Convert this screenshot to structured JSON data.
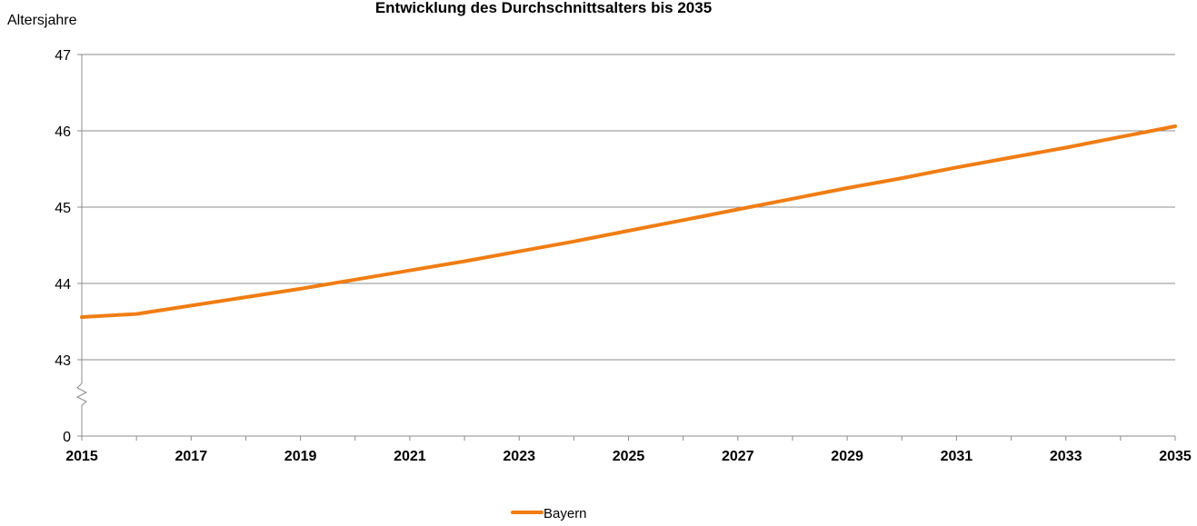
{
  "chart_data": {
    "type": "line",
    "title": "Entwicklung des Durchschnittsalters bis 2035",
    "ylabel": "Altersjahre",
    "xlabel": "",
    "x_ticks": [
      "2015",
      "2017",
      "2019",
      "2021",
      "2023",
      "2025",
      "2027",
      "2029",
      "2031",
      "2033",
      "2035"
    ],
    "y_ticks": [
      "0",
      "43",
      "44",
      "45",
      "46",
      "47"
    ],
    "ylim": [
      43,
      47
    ],
    "axis_break": true,
    "grid": true,
    "legend_position": "bottom",
    "x": [
      2015,
      2016,
      2017,
      2018,
      2019,
      2020,
      2021,
      2022,
      2023,
      2024,
      2025,
      2026,
      2027,
      2028,
      2029,
      2030,
      2031,
      2032,
      2033,
      2034,
      2035
    ],
    "series": [
      {
        "name": "Bayern",
        "color": "#f07d14",
        "values": [
          43.56,
          43.6,
          43.71,
          43.82,
          43.93,
          44.05,
          44.17,
          44.29,
          44.42,
          44.55,
          44.69,
          44.83,
          44.97,
          45.11,
          45.25,
          45.38,
          45.52,
          45.65,
          45.78,
          45.92,
          46.06
        ]
      }
    ]
  }
}
